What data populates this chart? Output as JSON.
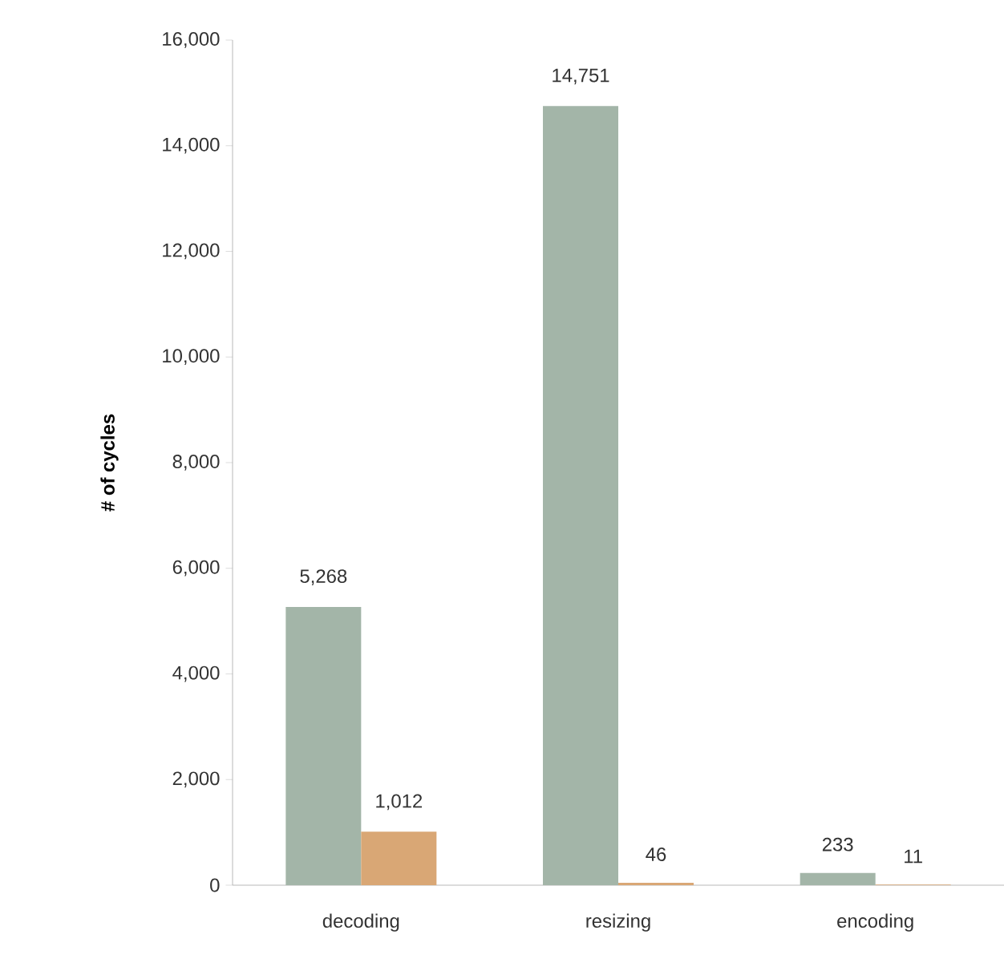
{
  "chart_data": {
    "type": "bar",
    "ylabel": "# of cycles",
    "categories": [
      "decoding",
      "resizing",
      "encoding"
    ],
    "series": [
      {
        "color": "#a3b5a8",
        "values": [
          5268,
          14751,
          233
        ],
        "value_labels": [
          "5,268",
          "14,751",
          "233"
        ]
      },
      {
        "color": "#d9a775",
        "values": [
          1012,
          46,
          11
        ],
        "value_labels": [
          "1,012",
          "46",
          "11"
        ]
      }
    ],
    "ylim": [
      0,
      16000
    ],
    "yticks": [
      0,
      {
        "value": 2000,
        "label": "2,000"
      },
      {
        "value": 4000,
        "label": "4,000"
      },
      {
        "value": 6000,
        "label": "6,000"
      },
      {
        "value": 8000,
        "label": "8,000"
      },
      {
        "value": 10000,
        "label": "10,000"
      },
      {
        "value": 12000,
        "label": "12,000"
      },
      {
        "value": 14000,
        "label": "14,000"
      },
      {
        "value": 16000,
        "label": "16,000"
      }
    ],
    "grid": false
  }
}
